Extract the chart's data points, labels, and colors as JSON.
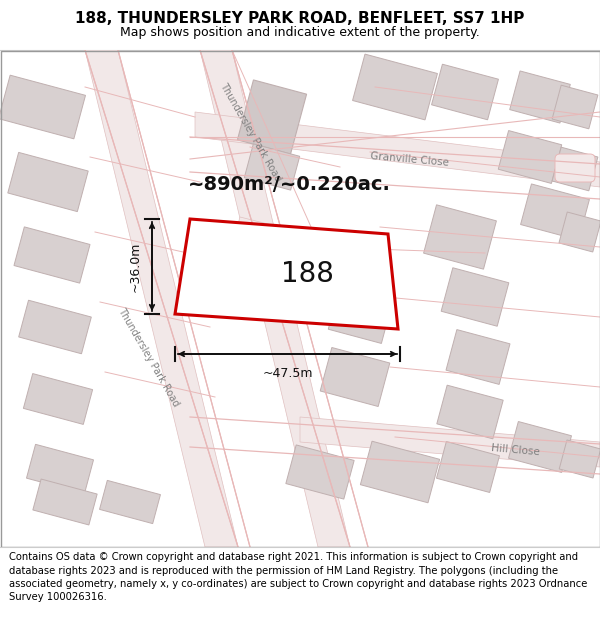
{
  "title_line1": "188, THUNDERSLEY PARK ROAD, BENFLEET, SS7 1HP",
  "title_line2": "Map shows position and indicative extent of the property.",
  "footer_text": "Contains OS data © Crown copyright and database right 2021. This information is subject to Crown copyright and database rights 2023 and is reproduced with the permission of HM Land Registry. The polygons (including the associated geometry, namely x, y co-ordinates) are subject to Crown copyright and database rights 2023 Ordnance Survey 100026316.",
  "area_label": "~890m²/~0.220ac.",
  "number_label": "188",
  "dim_width_label": "~47.5m",
  "dim_height_label": "~36.0m",
  "map_bg": "#f8f4f4",
  "building_fill": "#d8d0d0",
  "building_stroke": "#c0b0b0",
  "road_line_color": "#e8b8b8",
  "road_fill": "#f8f4f4",
  "property_fill": "#ffffff",
  "property_stroke": "#cc0000",
  "dim_color": "#111111",
  "label_color": "#111111",
  "road_text_color": "#808080",
  "title_fontsize": 11,
  "subtitle_fontsize": 9,
  "footer_fontsize": 7.2,
  "area_fontsize": 14,
  "number_fontsize": 20,
  "dim_fontsize": 9,
  "road_fontsize": 7
}
